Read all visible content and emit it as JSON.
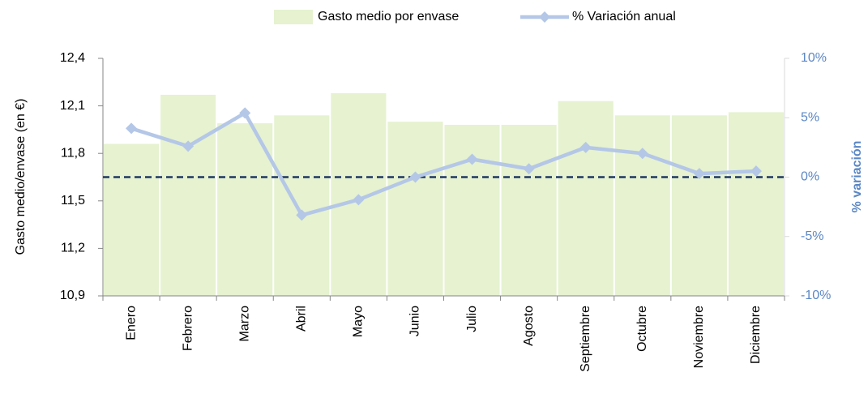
{
  "chart_data": {
    "type": "bar_line",
    "y_label": "Gasto medio/envase (en €)",
    "y2_label": "% variación",
    "categories": [
      "Enero",
      "Febrero",
      "Marzo",
      "Abril",
      "Mayo",
      "Junio",
      "Julio",
      "Agosto",
      "Septiembre",
      "Octubre",
      "Noviembre",
      "Diciembre"
    ],
    "series": [
      {
        "name": "Gasto medio por envase",
        "type": "bar",
        "color": "#e6f2d0",
        "values": [
          11.86,
          12.17,
          11.99,
          12.04,
          12.18,
          12.0,
          11.98,
          11.98,
          12.13,
          12.04,
          12.04,
          12.06
        ]
      },
      {
        "name": "% Variación anual",
        "type": "line",
        "axis": "y2",
        "color": "#b4c7e7",
        "values": [
          4.1,
          2.6,
          5.4,
          -3.2,
          -1.9,
          0.0,
          1.5,
          0.7,
          2.5,
          2.0,
          0.3,
          0.5
        ]
      }
    ],
    "ylim": [
      10.9,
      12.4
    ],
    "yticks": [
      {
        "value": 10.9,
        "label": "10,9"
      },
      {
        "value": 11.2,
        "label": "11,2"
      },
      {
        "value": 11.5,
        "label": "11,5"
      },
      {
        "value": 11.8,
        "label": "11,8"
      },
      {
        "value": 12.1,
        "label": "12,1"
      },
      {
        "value": 12.4,
        "label": "12,4"
      }
    ],
    "y2lim": [
      -10,
      10
    ],
    "y2ticks": [
      {
        "value": -10,
        "label": "-10%"
      },
      {
        "value": -5,
        "label": "-5%"
      },
      {
        "value": 0,
        "label": "0%"
      },
      {
        "value": 5,
        "label": "5%"
      },
      {
        "value": 10,
        "label": "10%"
      }
    ],
    "legend": "top"
  }
}
